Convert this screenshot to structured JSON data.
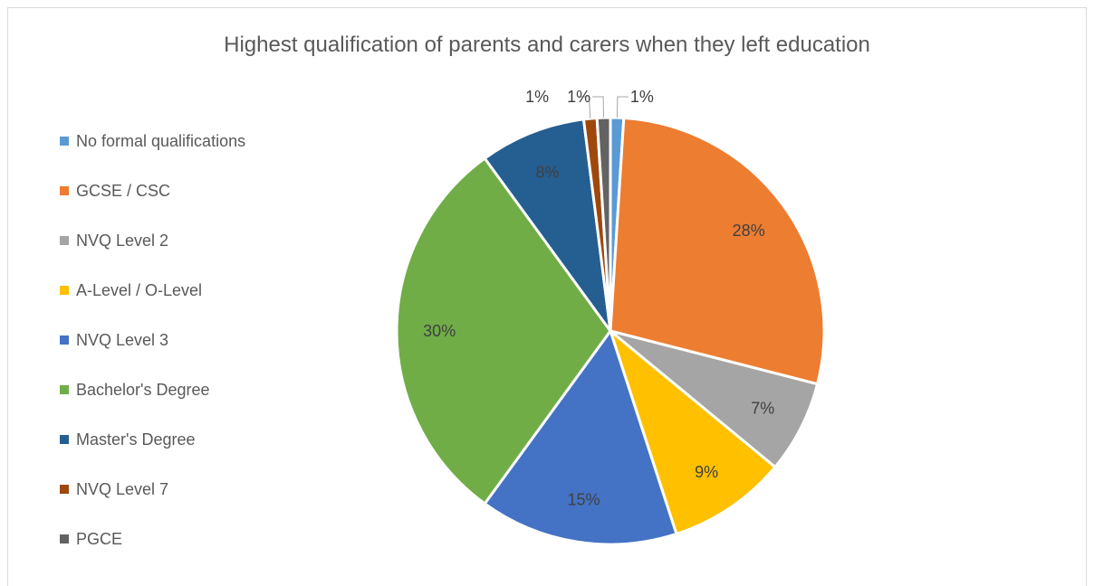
{
  "chart_data": {
    "type": "pie",
    "title": "Highest qualification of parents and carers when they left education",
    "legend_position": "left",
    "categories": [
      "No formal qualifications",
      "GCSE / CSC",
      "NVQ Level 2",
      "A-Level / O-Level",
      "NVQ Level 3",
      "Bachelor's Degree",
      "Master's Degree",
      "NVQ Level 7",
      "PGCE"
    ],
    "values": [
      1,
      28,
      7,
      9,
      15,
      30,
      8,
      1,
      1
    ],
    "labels": [
      "1%",
      "28%",
      "7%",
      "9%",
      "15%",
      "30%",
      "8%",
      "1%",
      "1%"
    ],
    "colors": [
      "#5B9BD5",
      "#ED7D31",
      "#A5A5A5",
      "#FFC000",
      "#4472C4",
      "#70AD47",
      "#255E91",
      "#9E480E",
      "#636363"
    ]
  }
}
